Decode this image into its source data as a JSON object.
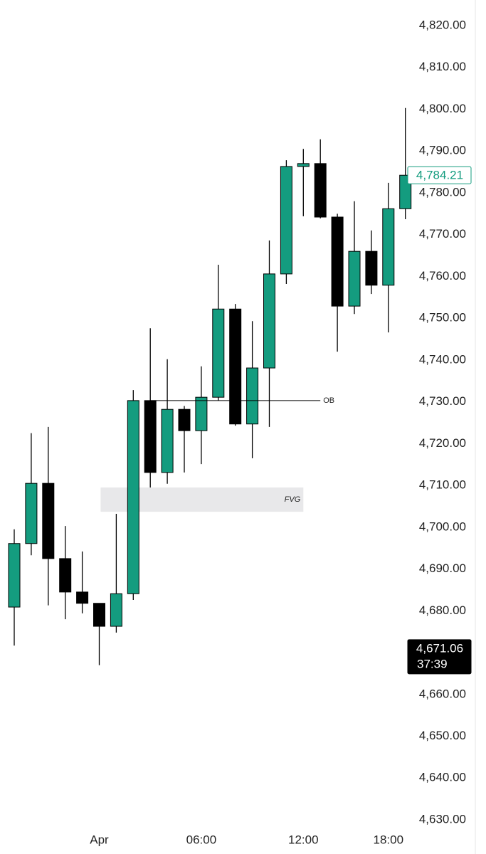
{
  "chart_data": {
    "type": "candlestick",
    "categories": [
      null,
      null,
      null,
      null,
      null,
      "Apr",
      null,
      null,
      null,
      null,
      null,
      "06:00",
      null,
      null,
      null,
      null,
      null,
      "12:00",
      null,
      null,
      null,
      null,
      "18:00",
      null
    ],
    "open": [
      4680.9,
      4696.1,
      4710.5,
      4692.5,
      4684.5,
      4681.8,
      4676.3,
      4684.1,
      4730.3,
      4713.1,
      4728.2,
      4723.1,
      4731.1,
      4752.2,
      4724.7,
      4738.1,
      4760.6,
      4786.3,
      4787.0,
      4774.2,
      4752.9,
      4766.0,
      4757.9,
      4776.2
    ],
    "high": [
      4699.5,
      4722.5,
      4724.0,
      4700.3,
      4694.2,
      4681.8,
      4703.2,
      4732.8,
      4747.6,
      4740.2,
      4729.0,
      4738.5,
      4762.8,
      4753.4,
      4749.3,
      4768.6,
      4787.8,
      4790.5,
      4792.8,
      4775.0,
      4778.0,
      4771.0,
      4782.4,
      4800.3
    ],
    "low": [
      4671.7,
      4693.3,
      4681.3,
      4678.0,
      4679.4,
      4667.0,
      4674.8,
      4682.6,
      4709.5,
      4710.4,
      4713.1,
      4715.1,
      4730.3,
      4724.3,
      4716.5,
      4724.0,
      4758.2,
      4774.4,
      4773.9,
      4742.0,
      4751.0,
      4755.8,
      4746.6,
      4773.7
    ],
    "close": [
      4696.1,
      4710.5,
      4692.5,
      4684.5,
      4681.8,
      4676.3,
      4684.1,
      4730.3,
      4713.1,
      4728.2,
      4723.1,
      4731.1,
      4752.2,
      4724.7,
      4738.1,
      4760.6,
      4786.3,
      4787.0,
      4774.2,
      4752.9,
      4766.0,
      4757.9,
      4776.2,
      4784.21
    ],
    "up_color": "#149c7f",
    "down_color": "#000000",
    "ylim": [
      4630,
      4820
    ],
    "yticks": [
      {
        "value": 4820,
        "label": "4,820.00"
      },
      {
        "value": 4810,
        "label": "4,810.00"
      },
      {
        "value": 4800,
        "label": "4,800.00"
      },
      {
        "value": 4790,
        "label": "4,790.00"
      },
      {
        "value": 4780,
        "label": "4,780.00"
      },
      {
        "value": 4770,
        "label": "4,770.00"
      },
      {
        "value": 4760,
        "label": "4,760.00"
      },
      {
        "value": 4750,
        "label": "4,750.00"
      },
      {
        "value": 4740,
        "label": "4,740.00"
      },
      {
        "value": 4730,
        "label": "4,730.00"
      },
      {
        "value": 4720,
        "label": "4,720.00"
      },
      {
        "value": 4710,
        "label": "4,710.00"
      },
      {
        "value": 4700,
        "label": "4,700.00"
      },
      {
        "value": 4690,
        "label": "4,690.00"
      },
      {
        "value": 4680,
        "label": "4,680.00"
      },
      {
        "value": 4670,
        "label": "4,670.00"
      },
      {
        "value": 4660,
        "label": "4,660.00"
      },
      {
        "value": 4650,
        "label": "4,650.00"
      },
      {
        "value": 4640,
        "label": "4,640.00"
      },
      {
        "value": 4630,
        "label": "4,630.00"
      }
    ],
    "annotations": [
      {
        "label": "OB",
        "value": 4730.3,
        "start": 8,
        "end": 18
      },
      {
        "label": "FVG",
        "top": 4709.5,
        "bottom": 4703.7,
        "start": 6,
        "end": 17
      }
    ],
    "price_labels": [
      {
        "value": 4784.21,
        "label": "4,784.21",
        "color": "#149c7f",
        "filled": false
      },
      {
        "value": 4671.06,
        "label": "4,671.06",
        "countdown": "37:39",
        "color": "#000000",
        "filled": true
      }
    ]
  }
}
